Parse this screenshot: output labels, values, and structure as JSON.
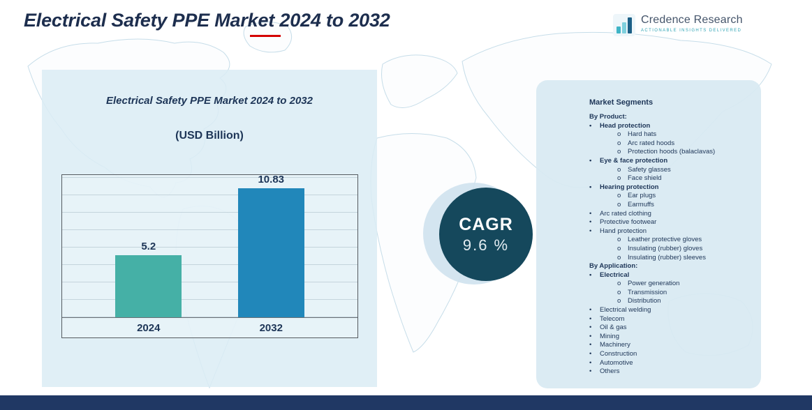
{
  "header": {
    "title": "Electrical Safety PPE Market 2024 to 2032"
  },
  "logo": {
    "name": "Credence Research",
    "tagline": "Actionable Insights Delivered"
  },
  "chart_panel": {
    "title": "Electrical Safety PPE Market 2024 to 2032",
    "subtitle": "(USD Billion)"
  },
  "chart_data": {
    "type": "bar",
    "categories": [
      "2024",
      "2032"
    ],
    "values": [
      5.2,
      10.83
    ],
    "title": "Electrical Safety PPE Market 2024 to 2032",
    "xlabel": "",
    "ylabel": "USD Billion",
    "ylim": [
      0,
      12
    ],
    "grid": true,
    "legend": "none",
    "bar_colors": [
      "#45b0a6",
      "#2187ba"
    ]
  },
  "cagr": {
    "label": "CAGR",
    "value": "9.6 %"
  },
  "segments": {
    "title": "Market Segments",
    "sections": [
      {
        "heading": "By Product:",
        "items": [
          {
            "label": "Head protection",
            "level": 1,
            "bold": true
          },
          {
            "label": "Hard hats",
            "level": 2
          },
          {
            "label": "Arc rated hoods",
            "level": 2
          },
          {
            "label": "Protection hoods (balaclavas)",
            "level": 2
          },
          {
            "label": "Eye & face protection",
            "level": 1,
            "bold": true
          },
          {
            "label": "Safety glasses",
            "level": 2
          },
          {
            "label": "Face shield",
            "level": 2
          },
          {
            "label": "Hearing protection",
            "level": 1,
            "bold": true
          },
          {
            "label": "Ear plugs",
            "level": 2
          },
          {
            "label": "Earmuffs",
            "level": 2
          },
          {
            "label": "Arc rated clothing",
            "level": 1
          },
          {
            "label": "Protective footwear",
            "level": 1
          },
          {
            "label": "Hand protection",
            "level": 1
          },
          {
            "label": "Leather protective gloves",
            "level": 2
          },
          {
            "label": "Insulating (rubber) gloves",
            "level": 2
          },
          {
            "label": "Insulating (rubber) sleeves",
            "level": 2
          }
        ]
      },
      {
        "heading": "By Application:",
        "items": [
          {
            "label": "Electrical",
            "level": 1,
            "bold": true
          },
          {
            "label": "Power generation",
            "level": 2
          },
          {
            "label": "Transmission",
            "level": 2
          },
          {
            "label": "Distribution",
            "level": 2
          },
          {
            "label": "Electrical welding",
            "level": 1
          },
          {
            "label": "Telecom",
            "level": 1
          },
          {
            "label": "Oil & gas",
            "level": 1
          },
          {
            "label": "Mining",
            "level": 1
          },
          {
            "label": "Machinery",
            "level": 1
          },
          {
            "label": "Construction",
            "level": 1
          },
          {
            "label": "Automotive",
            "level": 1
          },
          {
            "label": "Others",
            "level": 1
          }
        ]
      }
    ]
  },
  "colors": {
    "title_text": "#1d2e4e",
    "panel_background": "#dbecf4",
    "cagr_circle": "#15485c",
    "footer_bar": "#203864",
    "underline_accent": "#d40000"
  }
}
